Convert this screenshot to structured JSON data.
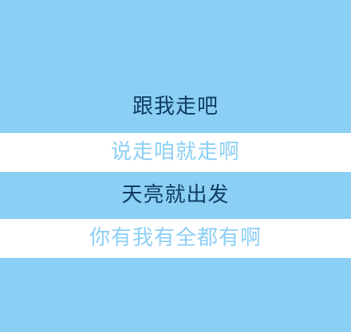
{
  "lines": [
    {
      "text": "跟我走吧"
    },
    {
      "text": "说走咱就走啊"
    },
    {
      "text": "天亮就出发"
    },
    {
      "text": "你有我有全都有啊"
    }
  ],
  "colors": {
    "background": "#8ccff5",
    "band": "#ffffff",
    "dark_text": "#0e3d63",
    "light_text": "#8ccff5"
  }
}
